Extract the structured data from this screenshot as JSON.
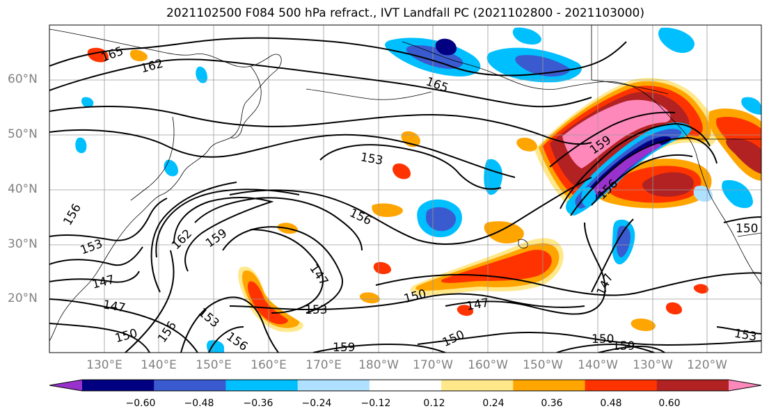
{
  "title": "2021102500 F084 500 hPa refract., IVT Landfall PC (2021102800 - 2021103000)",
  "map": {
    "region": "North Pacific",
    "lon_labels": [
      "130°E",
      "140°E",
      "150°E",
      "160°E",
      "170°E",
      "180°W",
      "170°W",
      "160°W",
      "150°W",
      "140°W",
      "130°W",
      "120°W"
    ],
    "lat_labels": [
      "60°N",
      "50°N",
      "40°N",
      "30°N",
      "20°N"
    ],
    "contour_labels": [
      "165",
      "162",
      "165",
      "159",
      "153",
      "156",
      "162",
      "159",
      "153",
      "156",
      "147",
      "150",
      "153",
      "147",
      "147",
      "150",
      "156",
      "156",
      "159",
      "150",
      "147",
      "156",
      "147",
      "150",
      "159",
      "153",
      "153",
      "150"
    ],
    "fill_colors": {
      "strong_positive": "#ff88bb",
      "positive_high": "#b22222",
      "positive_mid": "#ff3300",
      "positive": "#ffa500",
      "positive_low": "#ffe88a",
      "negative_low": "#b0e0ff",
      "negative": "#00bfff",
      "negative_mid": "#3a5bcf",
      "negative_high": "#000080",
      "strong_negative": "#9932cc"
    }
  },
  "colorbar": {
    "colors": [
      "#9932cc",
      "#000080",
      "#3a5bcf",
      "#00bfff",
      "#b0e0ff",
      "#ffffff",
      "#ffe88a",
      "#ffa500",
      "#ff3300",
      "#b22222",
      "#ff88bb"
    ],
    "tick_labels": [
      "−0.60",
      "−0.48",
      "−0.36",
      "−0.24",
      "−0.12",
      "0.12",
      "0.24",
      "0.36",
      "0.48",
      "0.60"
    ]
  }
}
